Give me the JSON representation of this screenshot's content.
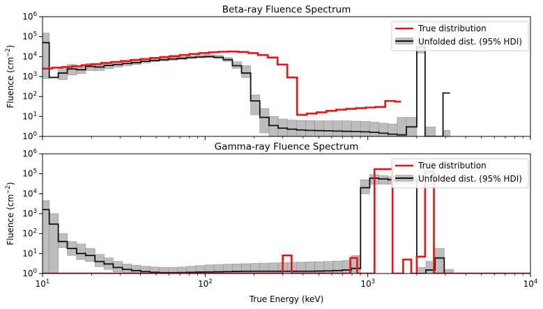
{
  "colors": {
    "true_line": "#ee1111",
    "unfolded_line": "#111111",
    "hdi_fill": "#bdbdbd",
    "hdi_edge": "#8f8f8f",
    "axes": "#000000"
  },
  "chart_data": [
    {
      "type": "line",
      "title": "Beta-ray Fluence Spectrum",
      "xlabel": "",
      "ylabel": "Fluence (cm$^{-2}$)",
      "ylabel_text": "Fluence (cm",
      "ylabel_sup": "−2",
      "ylabel_close": ")",
      "xscale": "log",
      "yscale": "log",
      "xlim": [
        10,
        10000
      ],
      "ylim": [
        1,
        1000000
      ],
      "show_x_tick_labels": false,
      "legend": {
        "placement": "top-right",
        "entries": [
          "True distribution",
          "Unfolded dist. (95% HDI)"
        ]
      },
      "series": [
        {
          "name": "True distribution",
          "style": "step",
          "edges": [
            10,
            11.5,
            13.2,
            15.2,
            17.4,
            20,
            23,
            26.4,
            30.3,
            34.8,
            40,
            45.9,
            52.8,
            60.6,
            69.6,
            80,
            91.9,
            105.6,
            121.3,
            139.3,
            160,
            183.8,
            211.1,
            242.5,
            278.6,
            320,
            367.6,
            422.3,
            485,
            557.2,
            640,
            735.2,
            844.5,
            970,
            1114.3,
            1280,
            1470.3,
            1600
          ],
          "values": [
            2500,
            2800,
            3000,
            3300,
            3700,
            4200,
            4800,
            5400,
            6000,
            6800,
            7600,
            8500,
            9500,
            10500,
            12000,
            13500,
            15000,
            16500,
            17500,
            18000,
            17000,
            15000,
            12000,
            9000,
            4000,
            900,
            12,
            14,
            16,
            19,
            22,
            24,
            26,
            28,
            30,
            60,
            55,
            12
          ]
        },
        {
          "name": "Unfolded dist. (95% HDI)",
          "style": "step",
          "edges": [
            10,
            11,
            12.5,
            14.2,
            16.2,
            18.4,
            21,
            23.9,
            27.2,
            31,
            35.3,
            40.2,
            45.8,
            52.1,
            59.3,
            67.5,
            76.9,
            87.5,
            99.6,
            113.4,
            129.1,
            147,
            167.3,
            190.4,
            216.8,
            246.8,
            281,
            319.9,
            364.2,
            414.6,
            472,
            537.3,
            611.7,
            696.4,
            792.8,
            902.5,
            1027.5,
            1169.7,
            1331.6,
            1515.9,
            1725.7,
            2000,
            2250,
            2600,
            2900,
            3200
          ],
          "values": [
            50000,
            900,
            1500,
            2400,
            2200,
            3200,
            3000,
            3600,
            4000,
            4500,
            5000,
            5800,
            6400,
            7000,
            7600,
            8200,
            9000,
            9600,
            10000,
            9200,
            7000,
            3500,
            1500,
            60,
            9,
            3.5,
            2.6,
            2.3,
            2.1,
            2.0,
            1.95,
            1.9,
            1.85,
            1.8,
            1.75,
            1.7,
            1.6,
            1.45,
            1.3,
            1.2,
            3,
            30000,
            1,
            1,
            150,
            1
          ],
          "hdi_low": [
            800,
            1,
            700,
            1200,
            1400,
            2000,
            2000,
            2500,
            3000,
            3500,
            4000,
            4800,
            5500,
            6000,
            6600,
            7200,
            8000,
            8600,
            9000,
            8000,
            5800,
            2600,
            900,
            12,
            1.5,
            1,
            1,
            1,
            1,
            1,
            1,
            1,
            1,
            1,
            1,
            1,
            1,
            1,
            1,
            1,
            1,
            15000,
            1,
            1,
            1,
            1
          ],
          "hdi_high": [
            150000,
            1,
            2500,
            4000,
            3500,
            4500,
            4200,
            5000,
            5500,
            6000,
            6800,
            7500,
            8200,
            8800,
            9400,
            10000,
            11000,
            12000,
            12500,
            11500,
            9000,
            5500,
            3500,
            120,
            25,
            10,
            7.5,
            6.5,
            6.3,
            6.2,
            6.0,
            6.0,
            6.0,
            6.0,
            5.8,
            5.6,
            5.2,
            4.6,
            4.2,
            9,
            9,
            40000,
            3,
            1,
            2,
            1
          ]
        }
      ]
    },
    {
      "type": "line",
      "title": "Gamma-ray Fluence Spectrum",
      "xlabel": "True Energy (keV)",
      "ylabel": "Fluence (cm$^{-2}$)",
      "ylabel_text": "Fluence (cm",
      "ylabel_sup": "−2",
      "ylabel_close": ")",
      "xscale": "log",
      "yscale": "log",
      "xlim": [
        10,
        10000
      ],
      "ylim": [
        1,
        1000000
      ],
      "show_x_tick_labels": true,
      "legend": {
        "placement": "top-right",
        "entries": [
          "True distribution",
          "Unfolded dist. (95% HDI)"
        ]
      },
      "series": [
        {
          "name": "True distribution",
          "style": "step",
          "edges": [
            10,
            300,
            340,
            780,
            860,
            1100,
            1420,
            1650,
            1850,
            2000,
            2250,
            2350,
            2550,
            10000
          ],
          "values": [
            1,
            8,
            1,
            6,
            1,
            170000,
            1,
            5,
            1,
            7,
            130000,
            130000,
            1
          ]
        },
        {
          "name": "Unfolded dist. (95% HDI)",
          "style": "step",
          "edges": [
            10,
            11,
            12.5,
            14.2,
            16.2,
            18.4,
            21,
            23.9,
            27.2,
            31,
            35.3,
            40.2,
            45.8,
            52.1,
            59.3,
            67.5,
            76.9,
            87.5,
            99.6,
            113.4,
            129.1,
            147,
            167.3,
            190.4,
            216.8,
            246.8,
            281,
            319.9,
            364.2,
            414.6,
            472,
            537.3,
            611.7,
            696.4,
            792.8,
            902.5,
            1027.5,
            1169.7,
            1331.6,
            1515.9,
            1725.7,
            2000,
            2277,
            2591,
            2950,
            3358
          ],
          "values": [
            1600,
            300,
            40,
            18,
            10,
            8,
            4,
            3,
            2,
            1.6,
            1.4,
            1.25,
            1.15,
            1.1,
            1.1,
            1.12,
            1.15,
            1.18,
            1.2,
            1.22,
            1.25,
            1.28,
            1.3,
            1.3,
            1.3,
            1.3,
            1.3,
            1.3,
            1.3,
            1.3,
            1.32,
            1.35,
            1.4,
            1.5,
            1.8,
            20000,
            60000,
            55000,
            50000,
            50000,
            50000,
            1,
            1.5,
            6,
            1,
            1
          ],
          "hdi_low": [
            1,
            1,
            20,
            8,
            5,
            4,
            2.2,
            1.6,
            1.2,
            1,
            1,
            1,
            1,
            1,
            1,
            1,
            1,
            1,
            1,
            1,
            1,
            1,
            1,
            1,
            1,
            1,
            1,
            1,
            1,
            1,
            1,
            1,
            1,
            1,
            1,
            10000,
            30000,
            30000,
            30000,
            30000,
            30000,
            1,
            1,
            1,
            1,
            1
          ],
          "hdi_high": [
            4500,
            1000,
            100,
            40,
            30,
            18,
            9,
            6,
            4,
            3,
            2.6,
            2.3,
            2.1,
            2.0,
            2.0,
            2.1,
            2.3,
            2.5,
            2.7,
            2.8,
            2.9,
            3.0,
            3.1,
            3.2,
            3.3,
            3.4,
            3.5,
            3.6,
            3.7,
            3.8,
            3.9,
            4.0,
            4.2,
            4.5,
            8,
            50000,
            90000,
            80000,
            70000,
            70000,
            70000,
            2,
            4,
            18,
            1.6,
            1
          ]
        }
      ]
    }
  ]
}
